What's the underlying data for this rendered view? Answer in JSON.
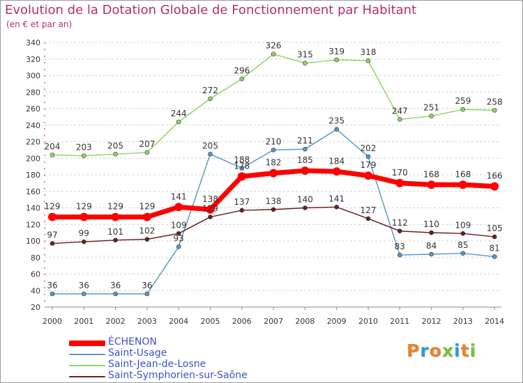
{
  "header": {
    "title": "Evolution de la Dotation Globale de Fonctionnement par Habitant",
    "subtitle": "(en € et par an)"
  },
  "logo": {
    "text": "Proxiti",
    "letters": [
      "P",
      "r",
      "o",
      "x",
      "i",
      "t",
      "i"
    ],
    "colors": [
      "#e8822a",
      "#2f9ad6",
      "#e8822a",
      "#7cbf3a",
      "#2f9ad6",
      "#e8822a",
      "#7cbf3a"
    ]
  },
  "chart_data": {
    "type": "line",
    "title": "Evolution de la Dotation Globale de Fonctionnement par Habitant",
    "subtitle": "(en € et par an)",
    "xlabel": "",
    "ylabel": "",
    "ylim": [
      20,
      340
    ],
    "ytick_step": 20,
    "grid": "horizontal dashed",
    "legend_position": "bottom-left",
    "x": [
      "2000",
      "2001",
      "2002",
      "2003",
      "2004",
      "2005",
      "2006",
      "2007",
      "2008",
      "2009",
      "2010",
      "2011",
      "2012",
      "2013",
      "2014"
    ],
    "series": [
      {
        "name": "ÉCHENON",
        "color": "#ff0000",
        "values": [
          129,
          129,
          129,
          129,
          141,
          138,
          178,
          182,
          185,
          184,
          179,
          170,
          168,
          168,
          166
        ]
      },
      {
        "name": "Saint-Usage",
        "color": "#5b97c9",
        "values": [
          36,
          36,
          36,
          36,
          93,
          205,
          188,
          210,
          211,
          235,
          202,
          83,
          84,
          85,
          81
        ]
      },
      {
        "name": "Saint-Jean-de-Losne",
        "color": "#8fd46a",
        "values": [
          204,
          203,
          205,
          207,
          244,
          272,
          296,
          326,
          315,
          319,
          318,
          247,
          251,
          259,
          258
        ]
      },
      {
        "name": "Saint-Symphorien-sur-Saône",
        "color": "#6b1f1f",
        "values": [
          97,
          99,
          101,
          102,
          109,
          129,
          137,
          138,
          140,
          141,
          127,
          112,
          110,
          109,
          105
        ]
      }
    ]
  }
}
